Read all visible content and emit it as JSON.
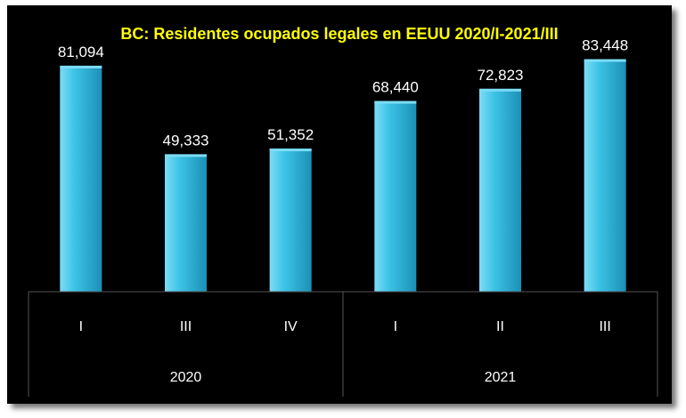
{
  "chart_data": {
    "type": "bar",
    "title": "BC: Residentes ocupados legales  en EEUU 2020/I-2021/III",
    "categories": [
      "I",
      "III",
      "IV",
      "I",
      "II",
      "III"
    ],
    "groups": [
      {
        "label": "2020",
        "categories": [
          "I",
          "III",
          "IV"
        ]
      },
      {
        "label": "2021",
        "categories": [
          "I",
          "II",
          "III"
        ]
      }
    ],
    "values": [
      81094,
      49333,
      51352,
      68440,
      72823,
      83448
    ],
    "value_labels": [
      "81,094",
      "49,333",
      "51,352",
      "68,440",
      "72,823",
      "83,448"
    ],
    "ylim": [
      0,
      90000
    ],
    "grid": false,
    "legend": "none",
    "colors": {
      "bar": "#3cc3e6",
      "bar_light": "#7ddcf5",
      "bar_dark": "#1b90b5",
      "background": "#000000",
      "title": "#ffff00",
      "text": "#ffffff",
      "axis_lines": "#555555"
    }
  }
}
